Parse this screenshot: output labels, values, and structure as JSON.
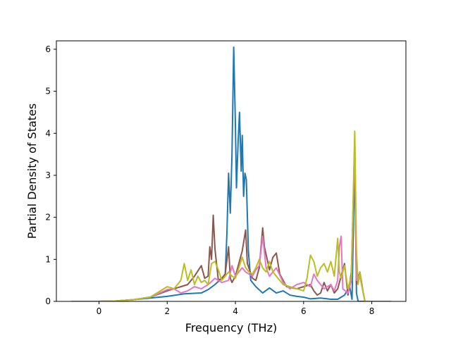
{
  "chart_data": {
    "type": "line",
    "title": "",
    "xlabel": "Frequency (THz)",
    "ylabel": "Partial Density of States",
    "xlim": [
      -1.25,
      9.0
    ],
    "ylim": [
      0,
      6.2
    ],
    "xticks": [
      0,
      2,
      4,
      6,
      8
    ],
    "yticks": [
      0,
      1,
      2,
      3,
      4,
      5,
      6
    ],
    "grid": false,
    "legend": "none",
    "series": [
      {
        "color": "#1f77b4",
        "points": [
          [
            -0.8,
            0
          ],
          [
            0.0,
            0.0
          ],
          [
            0.5,
            0.01
          ],
          [
            1.0,
            0.04
          ],
          [
            1.5,
            0.08
          ],
          [
            2.0,
            0.12
          ],
          [
            2.5,
            0.18
          ],
          [
            3.0,
            0.2
          ],
          [
            3.2,
            0.28
          ],
          [
            3.4,
            0.4
          ],
          [
            3.6,
            0.55
          ],
          [
            3.7,
            0.6
          ],
          [
            3.75,
            1.6
          ],
          [
            3.8,
            3.05
          ],
          [
            3.85,
            2.1
          ],
          [
            3.9,
            3.5
          ],
          [
            3.95,
            6.05
          ],
          [
            4.0,
            4.2
          ],
          [
            4.03,
            2.7
          ],
          [
            4.08,
            3.8
          ],
          [
            4.12,
            4.5
          ],
          [
            4.17,
            3.1
          ],
          [
            4.2,
            3.95
          ],
          [
            4.24,
            2.5
          ],
          [
            4.28,
            3.05
          ],
          [
            4.32,
            2.9
          ],
          [
            4.38,
            1.2
          ],
          [
            4.45,
            0.5
          ],
          [
            4.6,
            0.35
          ],
          [
            4.8,
            0.2
          ],
          [
            5.0,
            0.32
          ],
          [
            5.2,
            0.2
          ],
          [
            5.4,
            0.25
          ],
          [
            5.6,
            0.15
          ],
          [
            5.8,
            0.12
          ],
          [
            6.0,
            0.1
          ],
          [
            6.2,
            0.06
          ],
          [
            6.5,
            0.08
          ],
          [
            6.8,
            0.05
          ],
          [
            7.0,
            0.05
          ],
          [
            7.2,
            0.15
          ],
          [
            7.35,
            0.35
          ],
          [
            7.42,
            0.05
          ],
          [
            7.5,
            3.5
          ],
          [
            7.55,
            0.2
          ],
          [
            7.6,
            0
          ],
          [
            8.55,
            0
          ]
        ]
      },
      {
        "color": "#8c564b",
        "points": [
          [
            -0.8,
            0
          ],
          [
            0.0,
            0.0
          ],
          [
            0.5,
            0.01
          ],
          [
            1.0,
            0.04
          ],
          [
            1.5,
            0.1
          ],
          [
            2.0,
            0.25
          ],
          [
            2.2,
            0.3
          ],
          [
            2.4,
            0.35
          ],
          [
            2.6,
            0.4
          ],
          [
            2.8,
            0.6
          ],
          [
            3.0,
            0.85
          ],
          [
            3.1,
            0.55
          ],
          [
            3.2,
            0.6
          ],
          [
            3.25,
            1.3
          ],
          [
            3.3,
            1.0
          ],
          [
            3.35,
            2.05
          ],
          [
            3.4,
            1.25
          ],
          [
            3.5,
            0.5
          ],
          [
            3.6,
            0.55
          ],
          [
            3.7,
            0.65
          ],
          [
            3.8,
            1.3
          ],
          [
            3.85,
            0.55
          ],
          [
            3.9,
            0.45
          ],
          [
            4.0,
            0.6
          ],
          [
            4.1,
            0.9
          ],
          [
            4.2,
            1.2
          ],
          [
            4.3,
            1.7
          ],
          [
            4.35,
            0.9
          ],
          [
            4.5,
            0.55
          ],
          [
            4.6,
            0.5
          ],
          [
            4.7,
            0.8
          ],
          [
            4.8,
            1.75
          ],
          [
            4.85,
            1.3
          ],
          [
            5.0,
            0.75
          ],
          [
            5.1,
            1.05
          ],
          [
            5.2,
            1.15
          ],
          [
            5.3,
            0.65
          ],
          [
            5.5,
            0.35
          ],
          [
            5.8,
            0.3
          ],
          [
            6.0,
            0.35
          ],
          [
            6.2,
            0.4
          ],
          [
            6.3,
            0.25
          ],
          [
            6.4,
            0.15
          ],
          [
            6.5,
            0.2
          ],
          [
            6.6,
            0.45
          ],
          [
            6.7,
            0.25
          ],
          [
            6.8,
            0.4
          ],
          [
            6.9,
            0.2
          ],
          [
            7.0,
            0.3
          ],
          [
            7.1,
            0.6
          ],
          [
            7.2,
            0.9
          ],
          [
            7.3,
            0.15
          ],
          [
            7.4,
            0.7
          ],
          [
            7.5,
            3.4
          ],
          [
            7.55,
            0.4
          ],
          [
            7.65,
            0.7
          ],
          [
            7.75,
            0.2
          ],
          [
            7.8,
            0
          ],
          [
            8.55,
            0
          ]
        ]
      },
      {
        "color": "#e377c2",
        "points": [
          [
            -0.8,
            0
          ],
          [
            0.0,
            0.0
          ],
          [
            0.5,
            0.01
          ],
          [
            1.0,
            0.04
          ],
          [
            1.5,
            0.1
          ],
          [
            2.0,
            0.28
          ],
          [
            2.2,
            0.3
          ],
          [
            2.4,
            0.2
          ],
          [
            2.6,
            0.25
          ],
          [
            2.8,
            0.35
          ],
          [
            3.0,
            0.3
          ],
          [
            3.2,
            0.4
          ],
          [
            3.4,
            0.55
          ],
          [
            3.5,
            0.5
          ],
          [
            3.6,
            0.45
          ],
          [
            3.8,
            0.5
          ],
          [
            3.9,
            0.85
          ],
          [
            4.0,
            0.6
          ],
          [
            4.2,
            0.8
          ],
          [
            4.3,
            0.7
          ],
          [
            4.5,
            0.6
          ],
          [
            4.6,
            0.75
          ],
          [
            4.7,
            0.85
          ],
          [
            4.8,
            1.55
          ],
          [
            4.9,
            0.8
          ],
          [
            5.0,
            0.6
          ],
          [
            5.2,
            0.8
          ],
          [
            5.4,
            0.45
          ],
          [
            5.6,
            0.3
          ],
          [
            5.8,
            0.4
          ],
          [
            6.0,
            0.45
          ],
          [
            6.2,
            0.35
          ],
          [
            6.3,
            0.65
          ],
          [
            6.4,
            0.5
          ],
          [
            6.6,
            0.3
          ],
          [
            6.8,
            0.4
          ],
          [
            6.9,
            0.25
          ],
          [
            7.0,
            0.5
          ],
          [
            7.05,
            1.3
          ],
          [
            7.1,
            1.55
          ],
          [
            7.15,
            0.3
          ],
          [
            7.3,
            0.2
          ],
          [
            7.4,
            0.5
          ],
          [
            7.5,
            3.9
          ],
          [
            7.55,
            0.5
          ],
          [
            7.65,
            0.6
          ],
          [
            7.75,
            0.2
          ],
          [
            7.8,
            0
          ],
          [
            8.55,
            0
          ]
        ]
      },
      {
        "color": "#bcbd22",
        "points": [
          [
            -0.8,
            0
          ],
          [
            0.0,
            0.0
          ],
          [
            0.5,
            0.01
          ],
          [
            1.0,
            0.04
          ],
          [
            1.5,
            0.1
          ],
          [
            2.0,
            0.35
          ],
          [
            2.2,
            0.3
          ],
          [
            2.4,
            0.5
          ],
          [
            2.5,
            0.9
          ],
          [
            2.6,
            0.5
          ],
          [
            2.7,
            0.75
          ],
          [
            2.8,
            0.4
          ],
          [
            2.9,
            0.6
          ],
          [
            3.0,
            0.45
          ],
          [
            3.1,
            0.5
          ],
          [
            3.2,
            0.4
          ],
          [
            3.3,
            0.9
          ],
          [
            3.4,
            0.95
          ],
          [
            3.5,
            0.75
          ],
          [
            3.6,
            0.5
          ],
          [
            3.7,
            0.6
          ],
          [
            3.8,
            0.7
          ],
          [
            3.9,
            0.6
          ],
          [
            4.0,
            0.55
          ],
          [
            4.1,
            0.8
          ],
          [
            4.2,
            1.05
          ],
          [
            4.3,
            0.8
          ],
          [
            4.4,
            0.7
          ],
          [
            4.5,
            0.65
          ],
          [
            4.6,
            0.8
          ],
          [
            4.7,
            1.0
          ],
          [
            4.8,
            0.8
          ],
          [
            4.9,
            0.7
          ],
          [
            5.0,
            0.95
          ],
          [
            5.1,
            0.7
          ],
          [
            5.2,
            0.6
          ],
          [
            5.4,
            0.4
          ],
          [
            5.6,
            0.35
          ],
          [
            5.8,
            0.3
          ],
          [
            6.0,
            0.25
          ],
          [
            6.1,
            0.55
          ],
          [
            6.2,
            1.1
          ],
          [
            6.3,
            0.95
          ],
          [
            6.4,
            0.6
          ],
          [
            6.5,
            0.8
          ],
          [
            6.6,
            0.9
          ],
          [
            6.7,
            0.7
          ],
          [
            6.8,
            0.95
          ],
          [
            6.9,
            0.6
          ],
          [
            7.0,
            1.5
          ],
          [
            7.05,
            0.7
          ],
          [
            7.1,
            0.55
          ],
          [
            7.2,
            0.85
          ],
          [
            7.3,
            0.3
          ],
          [
            7.4,
            0.6
          ],
          [
            7.5,
            4.05
          ],
          [
            7.55,
            1.2
          ],
          [
            7.6,
            0.4
          ],
          [
            7.65,
            0.7
          ],
          [
            7.7,
            0.4
          ],
          [
            7.8,
            0
          ],
          [
            8.55,
            0
          ]
        ]
      }
    ]
  }
}
